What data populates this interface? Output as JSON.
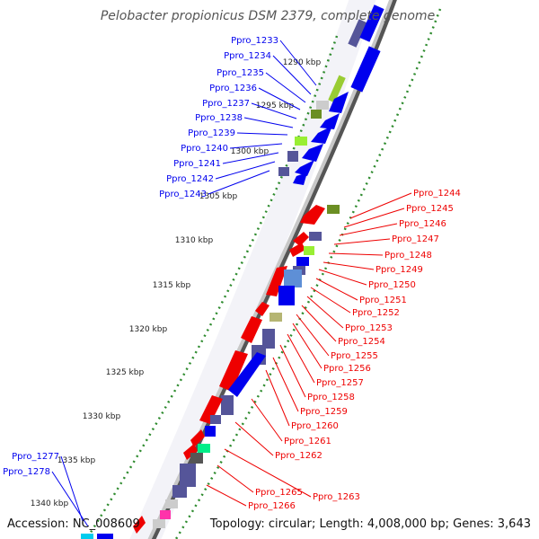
{
  "title": "Pelobacter propionicus DSM 2379, complete genome",
  "accession": "Accession: NC_008609",
  "summary": "Topology: circular; Length: 4,008,000 bp; Genes: 3,643",
  "colors": {
    "forward": "#0000ee",
    "reverse": "#ee0000",
    "gc_skew": "#228b22",
    "backbone": "#a9a9a9",
    "other_cds": "#555599",
    "rna": "#99cc33"
  },
  "ticks": [
    "1290 kbp",
    "1295 kbp",
    "1300 kbp",
    "1305 kbp",
    "1310 kbp",
    "1315 kbp",
    "1320 kbp",
    "1325 kbp",
    "1330 kbp",
    "1335 kbp",
    "1340 kbp"
  ],
  "genes_left": [
    "Ppro_1233",
    "Ppro_1234",
    "Ppro_1235",
    "Ppro_1236",
    "Ppro_1237",
    "Ppro_1238",
    "Ppro_1239",
    "Ppro_1240",
    "Ppro_1241",
    "Ppro_1242",
    "Ppro_1243"
  ],
  "genes_right": [
    "Ppro_1244",
    "Ppro_1245",
    "Ppro_1246",
    "Ppro_1247",
    "Ppro_1248",
    "Ppro_1249",
    "Ppro_1250",
    "Ppro_1251",
    "Ppro_1252",
    "Ppro_1253",
    "Ppro_1254",
    "Ppro_1255",
    "Ppro_1256",
    "Ppro_1257",
    "Ppro_1258",
    "Ppro_1259",
    "Ppro_1260",
    "Ppro_1261",
    "Ppro_1262",
    "Ppro_1263"
  ],
  "genes_bottom": [
    "Ppro_1265",
    "Ppro_1266"
  ],
  "genes_corner": [
    "Ppro_1277",
    "Ppro_1278"
  ]
}
